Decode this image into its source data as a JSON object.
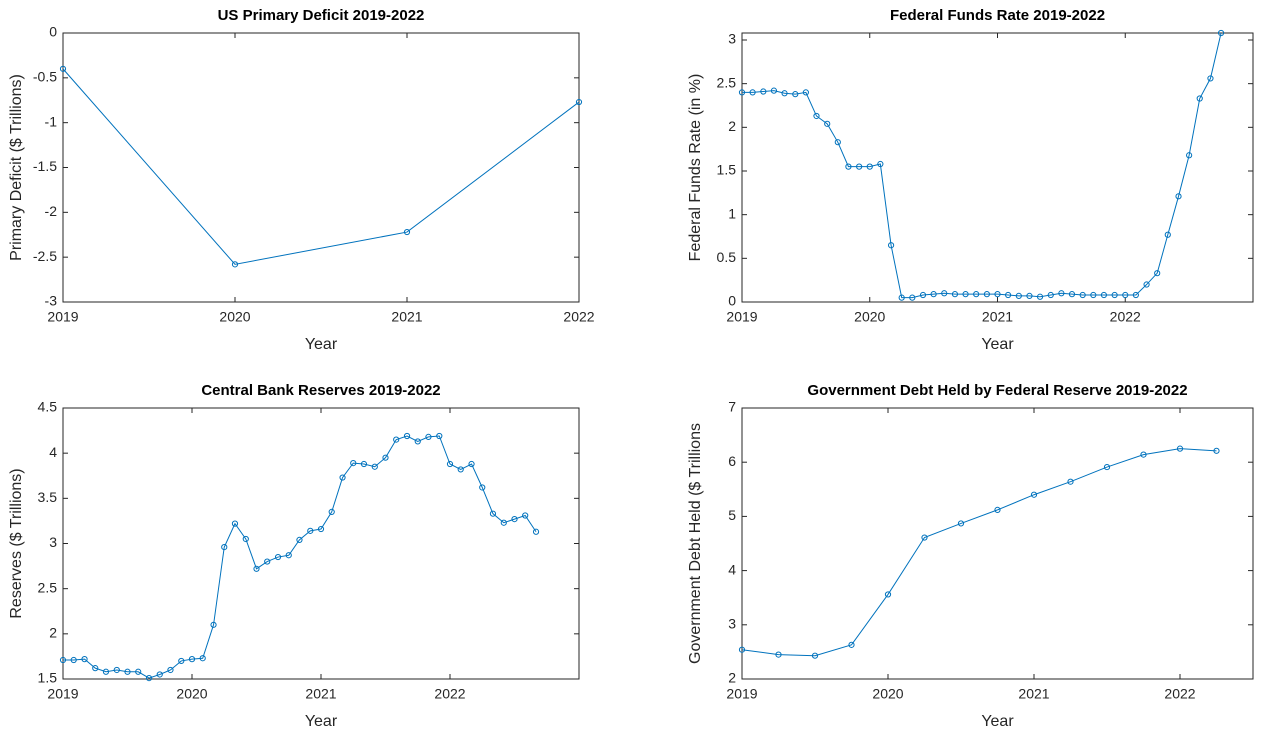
{
  "chart_data": [
    {
      "type": "line",
      "title": "US Primary Deficit 2019-2022",
      "x_label": "Year",
      "y_label": "Primary Deficit ($ Trillions)",
      "x": [
        2019,
        2020,
        2021,
        2022
      ],
      "series": [
        {
          "color": "#0072bd",
          "values": [
            -0.4,
            -2.58,
            -2.22,
            -0.77
          ]
        }
      ],
      "xlim": [
        2019,
        2022
      ],
      "xticks": [
        2019,
        2020,
        2021,
        2022
      ],
      "ylim": [
        -3,
        0
      ],
      "yticks": [
        -3,
        -2.5,
        -2,
        -1.5,
        -1,
        -0.5,
        0
      ]
    },
    {
      "type": "line",
      "title": "Federal Funds Rate 2019-2022",
      "x_label": "Year",
      "y_label": "Federal Funds Rate (in %)",
      "x": [
        2019,
        2019.083,
        2019.167,
        2019.25,
        2019.333,
        2019.417,
        2019.5,
        2019.583,
        2019.667,
        2019.75,
        2019.833,
        2019.917,
        2020,
        2020.083,
        2020.167,
        2020.25,
        2020.333,
        2020.417,
        2020.5,
        2020.583,
        2020.667,
        2020.75,
        2020.833,
        2020.917,
        2021,
        2021.083,
        2021.167,
        2021.25,
        2021.333,
        2021.417,
        2021.5,
        2021.583,
        2021.667,
        2021.75,
        2021.833,
        2021.917,
        2022,
        2022.083,
        2022.167,
        2022.25,
        2022.333,
        2022.417,
        2022.5,
        2022.583,
        2022.667,
        2022.75
      ],
      "series": [
        {
          "color": "#0072bd",
          "values": [
            2.4,
            2.4,
            2.41,
            2.42,
            2.39,
            2.38,
            2.4,
            2.13,
            2.04,
            1.83,
            1.55,
            1.55,
            1.55,
            1.58,
            0.65,
            0.05,
            0.05,
            0.08,
            0.09,
            0.1,
            0.09,
            0.09,
            0.09,
            0.09,
            0.09,
            0.08,
            0.07,
            0.07,
            0.06,
            0.08,
            0.1,
            0.09,
            0.08,
            0.08,
            0.08,
            0.08,
            0.08,
            0.08,
            0.2,
            0.33,
            0.77,
            1.21,
            1.68,
            2.33,
            2.56,
            3.08
          ]
        }
      ],
      "xlim": [
        2019,
        2023
      ],
      "xticks": [
        2019,
        2020,
        2021,
        2022
      ],
      "ylim": [
        0,
        3.08
      ],
      "yticks": [
        0,
        0.5,
        1,
        1.5,
        2,
        2.5,
        3
      ]
    },
    {
      "type": "line",
      "title": "Central Bank Reserves 2019-2022",
      "x_label": "Year",
      "y_label": "Reserves ($ Trillions)",
      "x": [
        2019,
        2019.083,
        2019.167,
        2019.25,
        2019.333,
        2019.417,
        2019.5,
        2019.583,
        2019.667,
        2019.75,
        2019.833,
        2019.917,
        2020,
        2020.083,
        2020.167,
        2020.25,
        2020.333,
        2020.417,
        2020.5,
        2020.583,
        2020.667,
        2020.75,
        2020.833,
        2020.917,
        2021,
        2021.083,
        2021.167,
        2021.25,
        2021.333,
        2021.417,
        2021.5,
        2021.583,
        2021.667,
        2021.75,
        2021.833,
        2021.917,
        2022,
        2022.083,
        2022.167,
        2022.25,
        2022.333,
        2022.417,
        2022.5,
        2022.583,
        2022.667
      ],
      "series": [
        {
          "color": "#0072bd",
          "values": [
            1.71,
            1.71,
            1.72,
            1.62,
            1.58,
            1.6,
            1.58,
            1.58,
            1.51,
            1.55,
            1.6,
            1.7,
            1.72,
            1.73,
            2.1,
            2.96,
            3.22,
            3.05,
            2.72,
            2.8,
            2.85,
            2.87,
            3.04,
            3.14,
            3.16,
            3.35,
            3.73,
            3.89,
            3.88,
            3.85,
            3.95,
            4.15,
            4.19,
            4.13,
            4.18,
            4.19,
            3.88,
            3.82,
            3.88,
            3.62,
            3.33,
            3.23,
            3.27,
            3.31,
            3.13
          ]
        }
      ],
      "xlim": [
        2019,
        2023
      ],
      "xticks": [
        2019,
        2020,
        2021,
        2022
      ],
      "ylim": [
        1.5,
        4.5
      ],
      "yticks": [
        1.5,
        2,
        2.5,
        3,
        3.5,
        4,
        4.5
      ]
    },
    {
      "type": "line",
      "title": "Government Debt Held by Federal Reserve 2019-2022",
      "x_label": "Year",
      "y_label": "Government Debt Held ($ Trillions",
      "x": [
        2019,
        2019.25,
        2019.5,
        2019.75,
        2020,
        2020.25,
        2020.5,
        2020.75,
        2021,
        2021.25,
        2021.5,
        2021.75,
        2022,
        2022.25
      ],
      "series": [
        {
          "color": "#0072bd",
          "values": [
            2.54,
            2.45,
            2.43,
            2.63,
            3.56,
            4.61,
            4.87,
            5.12,
            5.4,
            5.64,
            5.91,
            6.14,
            6.25,
            6.21
          ]
        }
      ],
      "xlim": [
        2019,
        2022.5
      ],
      "xticks": [
        2019,
        2020,
        2021,
        2022
      ],
      "ylim": [
        2,
        7
      ],
      "yticks": [
        2,
        3,
        4,
        5,
        6,
        7
      ]
    }
  ]
}
